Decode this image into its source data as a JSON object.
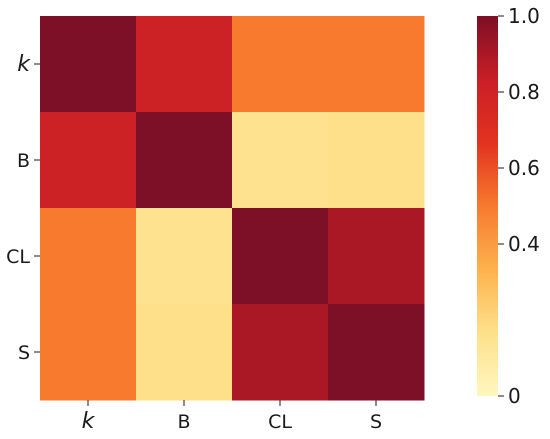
{
  "chart_data": {
    "type": "heatmap",
    "x_categories": [
      "k",
      "B",
      "CL",
      "S"
    ],
    "y_categories": [
      "k",
      "B",
      "CL",
      "S"
    ],
    "italic_categories": [
      "k"
    ],
    "values": [
      [
        1.0,
        0.8,
        0.5,
        0.5
      ],
      [
        0.8,
        1.0,
        0.15,
        0.17
      ],
      [
        0.5,
        0.15,
        1.0,
        0.9
      ],
      [
        0.5,
        0.17,
        0.9,
        1.0
      ]
    ],
    "colorbar": {
      "ticks": [
        "1.0",
        "0.8",
        "0.6",
        "0.4",
        "0"
      ],
      "tick_values": [
        1.0,
        0.8,
        0.6,
        0.4,
        0.0
      ],
      "range": [
        0,
        1
      ]
    },
    "colormap": "YlOrRd",
    "colormap_stops": [
      "#fff7c0",
      "#fee08b",
      "#fdb24c",
      "#f77a2f",
      "#e3321f",
      "#c81e26",
      "#7d0f26"
    ]
  }
}
